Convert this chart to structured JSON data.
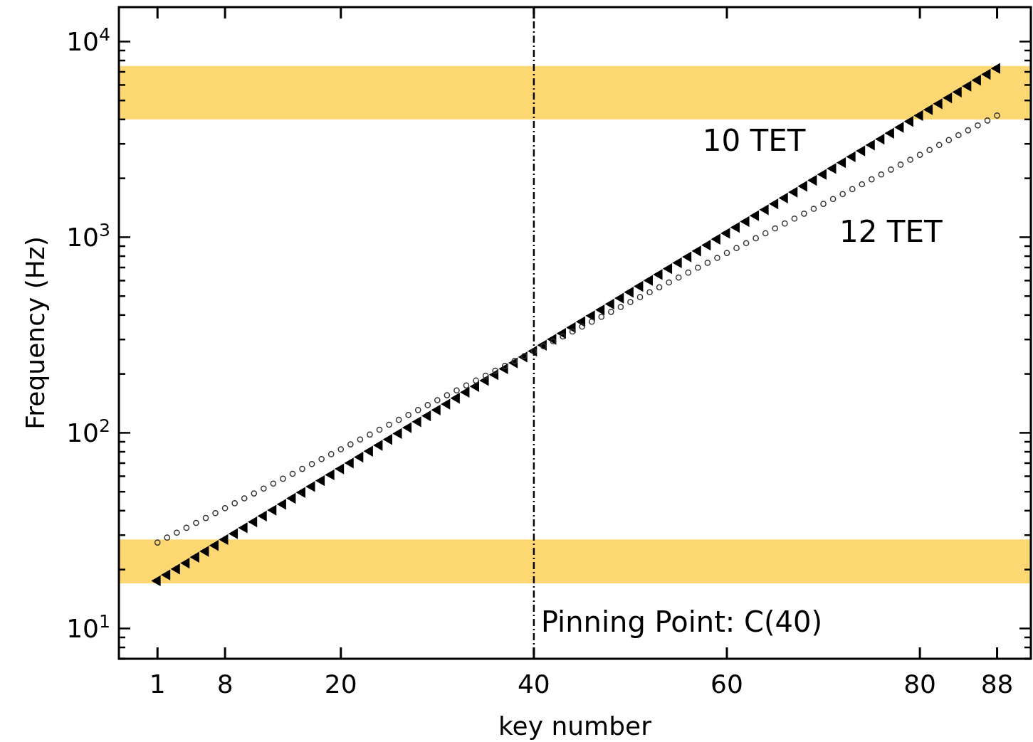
{
  "chart_data": {
    "type": "scatter",
    "xlabel": "key number",
    "ylabel": "Frequency (Hz)",
    "log": "y",
    "xlim": [
      -3,
      91.5
    ],
    "xticks": [
      1,
      8,
      20,
      40,
      60,
      80,
      88
    ],
    "ylim": [
      7,
      15000
    ],
    "yticks": [
      {
        "value": 7,
        "label": null
      },
      {
        "value": 8,
        "label": null
      },
      {
        "value": 9,
        "label": null
      },
      {
        "value": 10,
        "label": "10$^{1}$"
      },
      {
        "value": 20,
        "label": null
      },
      {
        "value": 30,
        "label": null
      },
      {
        "value": 40,
        "label": null
      },
      {
        "value": 50,
        "label": null
      },
      {
        "value": 60,
        "label": null
      },
      {
        "value": 70,
        "label": null
      },
      {
        "value": 80,
        "label": null
      },
      {
        "value": 90,
        "label": null
      },
      {
        "value": 100,
        "label": "10$^{2}$"
      },
      {
        "value": 200,
        "label": null
      },
      {
        "value": 300,
        "label": null
      },
      {
        "value": 400,
        "label": null
      },
      {
        "value": 500,
        "label": null
      },
      {
        "value": 600,
        "label": null
      },
      {
        "value": 700,
        "label": null
      },
      {
        "value": 800,
        "label": null
      },
      {
        "value": 900,
        "label": null
      },
      {
        "value": 1000,
        "label": "10$^{3}$"
      },
      {
        "value": 2000,
        "label": null
      },
      {
        "value": 3000,
        "label": null
      },
      {
        "value": 4000,
        "label": null
      },
      {
        "value": 5000,
        "label": null
      },
      {
        "value": 6000,
        "label": null
      },
      {
        "value": 7000,
        "label": null
      },
      {
        "value": 8000,
        "label": null
      },
      {
        "value": 9000,
        "label": null
      },
      {
        "value": 10000,
        "label": "10$^{4}$"
      }
    ],
    "x": [
      1,
      2,
      3,
      4,
      5,
      6,
      7,
      8,
      9,
      10,
      11,
      12,
      13,
      14,
      15,
      16,
      17,
      18,
      19,
      20,
      21,
      22,
      23,
      24,
      25,
      26,
      27,
      28,
      29,
      30,
      31,
      32,
      33,
      34,
      35,
      36,
      37,
      38,
      39,
      40,
      41,
      42,
      43,
      44,
      45,
      46,
      47,
      48,
      49,
      50,
      51,
      52,
      53,
      54,
      55,
      56,
      57,
      58,
      59,
      60,
      61,
      62,
      63,
      64,
      65,
      66,
      67,
      68,
      69,
      70,
      71,
      72,
      73,
      74,
      75,
      76,
      77,
      78,
      79,
      80,
      81,
      82,
      83,
      84,
      85,
      86,
      87,
      88
    ],
    "series": [
      {
        "name": "10 TET",
        "color": "#000000",
        "marker": "triangle",
        "values": [
          17.52,
          18.78,
          20.13,
          21.58,
          23.13,
          24.79,
          26.56,
          28.47,
          30.52,
          32.7,
          35.05,
          37.57,
          40.26,
          43.15,
          46.25,
          49.57,
          53.13,
          56.94,
          61.03,
          65.41,
          70.1,
          75.13,
          80.53,
          86.3,
          92.5,
          99.14,
          106.3,
          113.9,
          122.1,
          130.8,
          140.2,
          150.3,
          161.1,
          172.6,
          185,
          198.3,
          212.5,
          227.8,
          244.1,
          261.6,
          280.4,
          300.5,
          322.1,
          345.2,
          370,
          396.6,
          425,
          455.5,
          488.2,
          523.3,
          560.8,
          601.1,
          644.2,
          690.5,
          740,
          793.1,
          850,
          911,
          976.4,
          1047,
          1122,
          1202,
          1288,
          1381,
          1480,
          1586,
          1700,
          1822,
          1953,
          2093,
          2243,
          2404,
          2577,
          2762,
          2960,
          3172,
          3400,
          3644,
          3905,
          4186,
          4486,
          4809,
          5154,
          5524,
          5920,
          6345,
          6800,
          7288
        ]
      },
      {
        "name": "12 TET",
        "color": "#333333",
        "marker": "circle",
        "values": [
          27.5,
          29.14,
          30.87,
          32.7,
          34.65,
          36.71,
          38.89,
          41.2,
          43.65,
          46.25,
          49,
          51.91,
          55,
          58.27,
          61.74,
          65.41,
          69.3,
          73.42,
          77.78,
          82.41,
          87.31,
          92.5,
          98,
          103.8,
          110,
          116.5,
          123.5,
          130.8,
          138.6,
          146.8,
          155.6,
          164.8,
          174.6,
          185,
          196,
          207.7,
          220,
          233.1,
          246.9,
          261.6,
          277.2,
          293.7,
          311.1,
          329.6,
          349.2,
          370,
          392,
          415.3,
          440,
          466.2,
          493.9,
          523.3,
          554.4,
          587.3,
          622.3,
          659.3,
          698.5,
          740,
          784,
          830.6,
          880,
          932.3,
          987.8,
          1047,
          1109,
          1175,
          1245,
          1319,
          1397,
          1480,
          1568,
          1661,
          1760,
          1865,
          1976,
          2093,
          2217,
          2349,
          2489,
          2637,
          2794,
          2960,
          3136,
          3322,
          3520,
          3729,
          3951,
          4186
        ]
      }
    ],
    "bands": [
      {
        "axis": "y",
        "from": 17,
        "to": 28.5,
        "color": "#fdd771"
      },
      {
        "axis": "y",
        "from": 4000,
        "to": 7500,
        "color": "#fdd771"
      }
    ],
    "ref_lines": [
      {
        "axis": "x",
        "value": 40,
        "label": "Pinning Point: C(40)",
        "line_style": "dashdot",
        "color": "#000000"
      }
    ]
  }
}
